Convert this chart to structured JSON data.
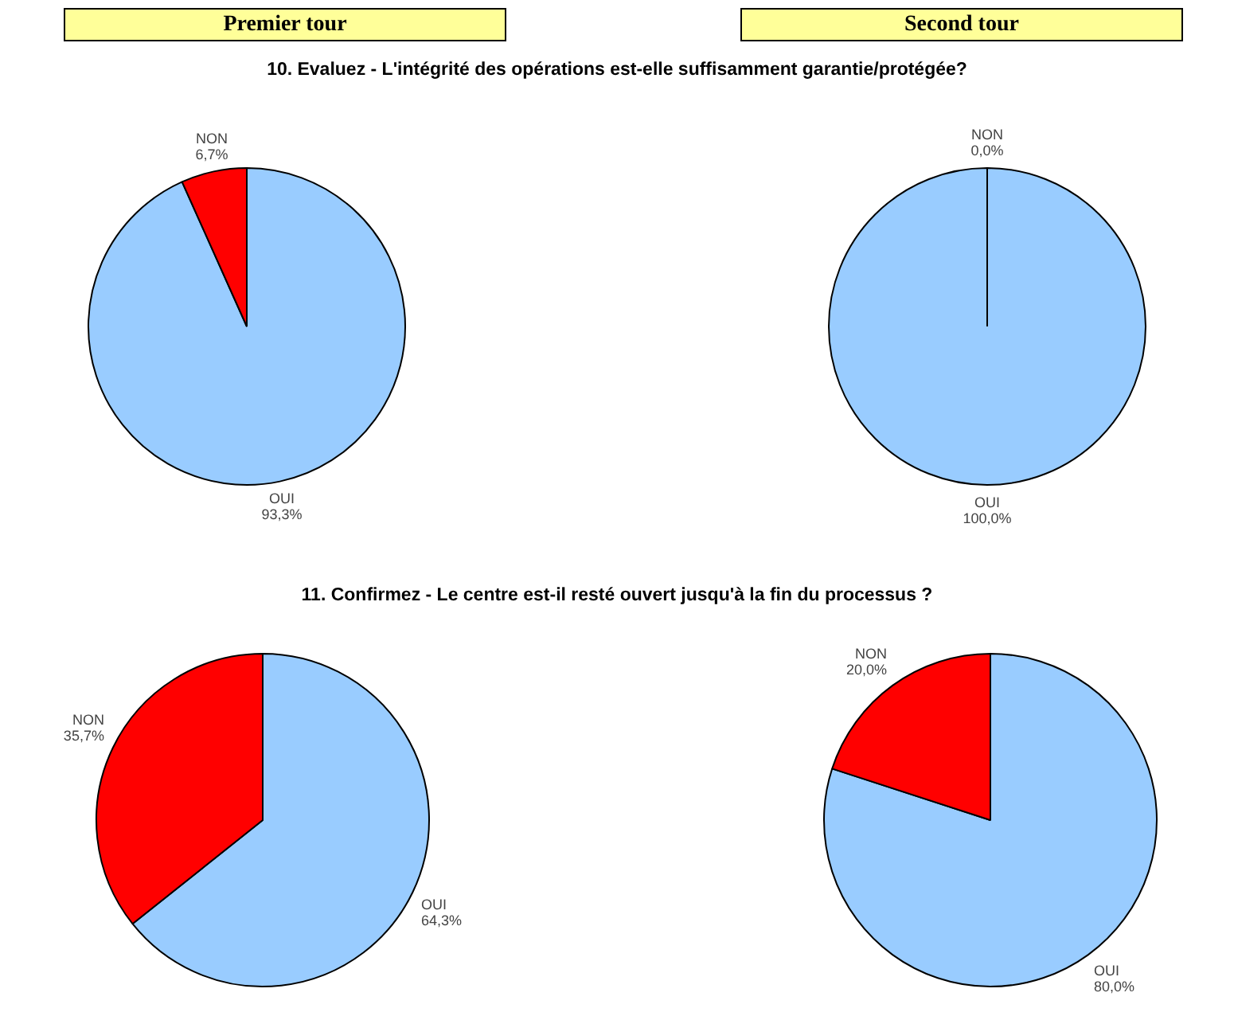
{
  "chart_data": [
    {
      "type": "pie",
      "title": "10. Evaluez - L'intégrité des opérations est-elle suffisamment garantie/protégée?",
      "annotations": [
        "Premier tour"
      ],
      "categories": [
        "OUI",
        "NON"
      ],
      "values": [
        93.3,
        6.7
      ],
      "colors": [
        "#99ccff",
        "#ff0000"
      ],
      "value_labels": [
        "93,3%",
        "6,7%"
      ]
    },
    {
      "type": "pie",
      "annotations": [
        "Second tour"
      ],
      "categories": [
        "OUI",
        "NON"
      ],
      "values": [
        100.0,
        0.0
      ],
      "colors": [
        "#99ccff",
        "#ff0000"
      ],
      "value_labels": [
        "100,0%",
        "0,0%"
      ]
    },
    {
      "type": "pie",
      "title": "11. Confirmez - Le centre est-il resté ouvert jusqu'à la fin du processus ?",
      "categories": [
        "OUI",
        "NON"
      ],
      "values": [
        64.3,
        35.7
      ],
      "colors": [
        "#99ccff",
        "#ff0000"
      ],
      "value_labels": [
        "64,3%",
        "35,7%"
      ]
    },
    {
      "type": "pie",
      "categories": [
        "OUI",
        "NON"
      ],
      "values": [
        80.0,
        20.0
      ],
      "colors": [
        "#99ccff",
        "#ff0000"
      ],
      "value_labels": [
        "80,0%",
        "20,0%"
      ]
    }
  ]
}
